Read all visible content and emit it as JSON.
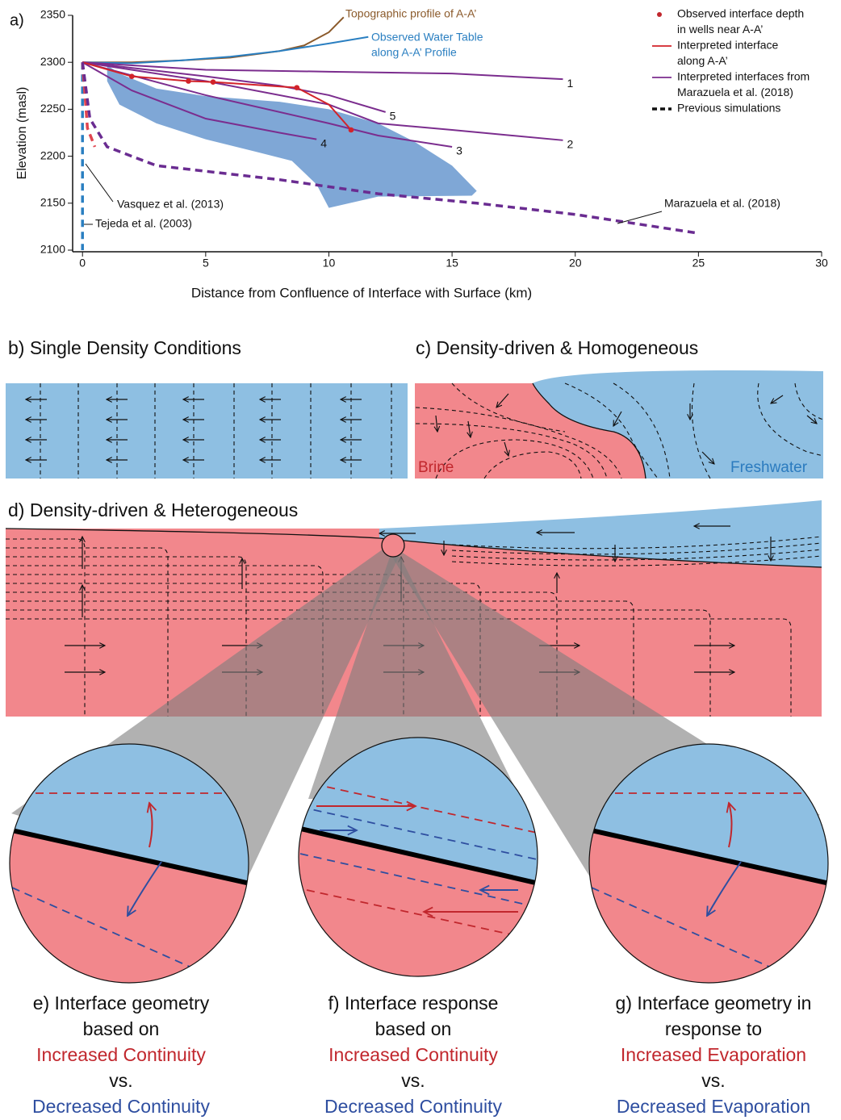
{
  "chart_data": {
    "type": "line",
    "panel_label": "a)",
    "xlabel": "Distance from Confluence of Interface with Surface (km)",
    "ylabel": "Elevation (masl)",
    "xlim": [
      -0.4,
      30
    ],
    "ylim": [
      2100,
      2350
    ],
    "xticks": [
      0,
      5,
      10,
      15,
      20,
      25,
      30
    ],
    "yticks": [
      2100,
      2150,
      2200,
      2250,
      2300,
      2350
    ],
    "band": {
      "color": "#7fa7d6",
      "x": [
        1,
        1.5,
        3,
        5,
        8,
        10,
        12,
        13.5,
        15,
        16,
        15.8,
        12,
        10,
        9.5,
        8.5,
        7,
        5,
        3,
        1.5,
        1
      ],
      "values": [
        2297,
        2288,
        2272,
        2264,
        2258,
        2250,
        2235,
        2215,
        2190,
        2163,
        2158,
        2157,
        2145,
        2170,
        2195,
        2205,
        2218,
        2235,
        2255,
        2280
      ]
    },
    "series": [
      {
        "color": "#8b5a2b",
        "x": [
          0,
          2,
          4,
          6,
          8,
          9,
          10,
          10.6
        ],
        "values": [
          2300,
          2300,
          2302,
          2305,
          2312,
          2318,
          2332,
          2348
        ]
      },
      {
        "color": "#2a7fc1",
        "x": [
          0,
          2,
          4,
          6,
          8,
          10,
          11.6
        ],
        "values": [
          2300,
          2299,
          2302,
          2306,
          2312,
          2320,
          2327
        ]
      },
      {
        "name": "1",
        "color": "#7b2d8e",
        "x": [
          0,
          5,
          10,
          15,
          19.5
        ],
        "values": [
          2300,
          2292,
          2290,
          2288,
          2282
        ]
      },
      {
        "name": "2",
        "color": "#7b2d8e",
        "x": [
          0,
          5,
          10,
          12,
          15,
          19.5
        ],
        "values": [
          2300,
          2280,
          2255,
          2235,
          2228,
          2217
        ]
      },
      {
        "name": "3",
        "color": "#7b2d8e",
        "x": [
          0,
          5,
          10,
          12,
          15
        ],
        "values": [
          2300,
          2265,
          2235,
          2222,
          2210
        ]
      },
      {
        "name": "4",
        "color": "#7b2d8e",
        "x": [
          0,
          2,
          5,
          8,
          9.5
        ],
        "values": [
          2300,
          2270,
          2240,
          2225,
          2218
        ]
      },
      {
        "name": "5",
        "color": "#7b2d8e",
        "x": [
          0,
          5,
          8,
          10,
          12.3
        ],
        "values": [
          2300,
          2285,
          2275,
          2265,
          2247
        ]
      },
      {
        "color": "#d2232a",
        "x": [
          0,
          2,
          4.3,
          5.3,
          8.7,
          10,
          10.9
        ],
        "values": [
          2300,
          2285,
          2280,
          2279,
          2273,
          2255,
          2228
        ]
      },
      {
        "color": "#2a7fc1",
        "dashed": true,
        "x": [
          0,
          0,
          0
        ],
        "values": [
          2300,
          2200,
          2100
        ]
      },
      {
        "color": "#e0454f",
        "dashed": true,
        "x": [
          0,
          0.2,
          0.5
        ],
        "values": [
          2300,
          2230,
          2210
        ]
      },
      {
        "color": "#6a2c91",
        "dashed": true,
        "x": [
          0,
          0.3,
          1,
          3,
          8,
          12,
          16,
          20,
          22,
          25
        ],
        "values": [
          2300,
          2240,
          2210,
          2190,
          2175,
          2160,
          2150,
          2138,
          2130,
          2118
        ]
      }
    ],
    "points": {
      "color": "#d2232a",
      "x": [
        2,
        4.3,
        5.3,
        8.7,
        10.9
      ],
      "values": [
        2285,
        2280,
        2279,
        2273,
        2228
      ]
    },
    "annotations": [
      "Topographic profile of A-A’",
      "Observed Water Table",
      "along A-A’ Profile",
      "Vasquez et al. (2013)",
      "Tejeda et al. (2003)",
      "Marazuela et al. (2018)"
    ],
    "legend": [
      {
        "style": "dot",
        "color": "#c1272d",
        "lines": [
          "Observed interface depth",
          "in wells near A-A’"
        ]
      },
      {
        "style": "line",
        "color": "#d2232a",
        "lines": [
          "Interpreted interface",
          "along A-A’"
        ]
      },
      {
        "style": "line",
        "color": "#7b2d8e",
        "lines": [
          "Interpreted interfaces from",
          "Marazuela et al. (2018)"
        ]
      },
      {
        "style": "dashed",
        "color": "#111111",
        "lines": [
          "Previous simulations"
        ]
      }
    ]
  },
  "panels": {
    "b": {
      "title": "b) Single Density Conditions"
    },
    "c": {
      "title": "c) Density-driven & Homogeneous",
      "brine": "Brine",
      "freshwater": "Freshwater"
    },
    "d": {
      "title": "d) Density-driven & Heterogeneous"
    },
    "e": {
      "lines": [
        "e) Interface geometry",
        "based on"
      ],
      "increased": "Increased Continuity",
      "vs": "vs.",
      "decreased": "Decreased Continuity"
    },
    "f": {
      "lines": [
        "f) Interface response",
        "based on"
      ],
      "increased": "Increased Continuity",
      "vs": "vs.",
      "decreased": "Decreased Continuity"
    },
    "g": {
      "lines": [
        "g) Interface geometry in",
        "response to"
      ],
      "increased": "Increased Evaporation",
      "vs": "vs.",
      "decreased": "Decreased Evaporation"
    }
  }
}
